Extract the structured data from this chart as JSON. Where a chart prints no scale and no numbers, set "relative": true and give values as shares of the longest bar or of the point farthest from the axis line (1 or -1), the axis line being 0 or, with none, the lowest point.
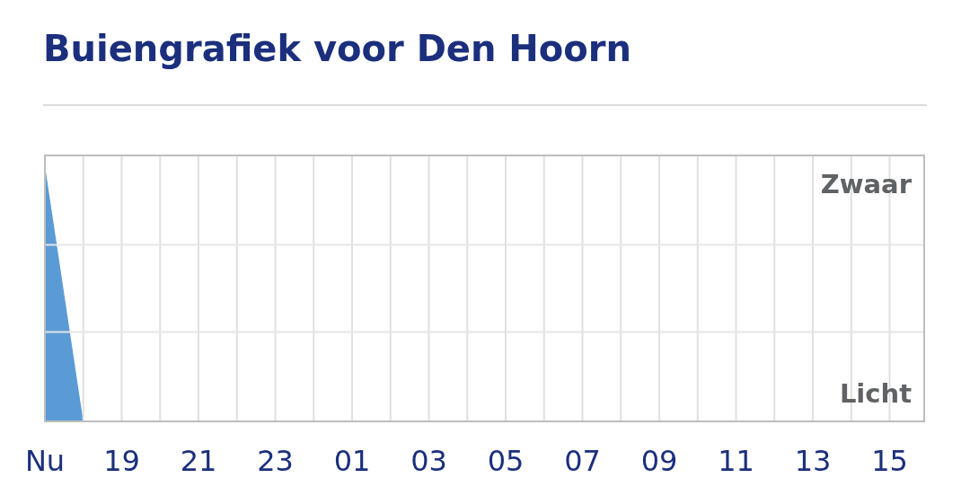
{
  "chart_data": {
    "type": "area",
    "title": "Buiengrafiek voor Den Hoorn",
    "relative": true,
    "grid": true,
    "categories": [
      "Nu",
      null,
      "19",
      null,
      "21",
      null,
      "23",
      null,
      "01",
      null,
      "03",
      null,
      "05",
      null,
      "07",
      null,
      "09",
      null,
      "11",
      null,
      "13",
      null,
      "15"
    ],
    "series": [
      {
        "color": "#5b9bd5",
        "values": [
          1,
          0,
          null,
          null,
          null,
          null,
          null,
          null,
          null,
          null,
          null,
          null,
          null,
          null,
          null,
          null,
          null,
          null,
          null,
          null,
          null,
          null,
          null
        ]
      }
    ],
    "ref_lines": [
      {
        "axis": "y",
        "value": 0.35,
        "color": "#e6e6e6"
      },
      {
        "axis": "y",
        "value": 0.69,
        "color": "#e6e6e6"
      }
    ],
    "annotations": [
      "Zwaar",
      "Licht"
    ]
  }
}
